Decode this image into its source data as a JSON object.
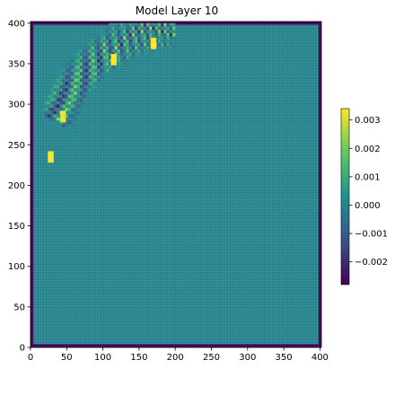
{
  "chart_data": {
    "type": "heatmap",
    "title": "Model Layer 10",
    "xlabel": "",
    "ylabel": "",
    "xlim": [
      0,
      402
    ],
    "ylim": [
      0,
      402
    ],
    "x_ticks": [
      0,
      50,
      100,
      150,
      200,
      250,
      300,
      350,
      400
    ],
    "y_ticks": [
      0,
      50,
      100,
      150,
      200,
      250,
      300,
      350,
      400
    ],
    "colormap": "viridis",
    "colorbar": {
      "range": [
        -0.0028,
        0.0034
      ],
      "ticks": [
        0.003,
        0.002,
        0.001,
        0.0,
        -0.001,
        -0.002
      ],
      "tick_labels": [
        "0.003",
        "0.002",
        "0.001",
        "0.000",
        "−0.001",
        "−0.002"
      ],
      "position": "right"
    },
    "background_value": 0.0,
    "border_value": -0.0028,
    "features": [
      {
        "kind": "wave-band",
        "x_range": [
          20,
          200
        ],
        "y_range": [
          220,
          400
        ],
        "peak_value": 0.0034,
        "trough_value": -0.0028
      },
      {
        "kind": "hot-spot",
        "x": 28,
        "y": 235,
        "value": 0.0034
      },
      {
        "kind": "hot-spot",
        "x": 115,
        "y": 355,
        "value": 0.0034
      },
      {
        "kind": "hot-spot",
        "x": 170,
        "y": 375,
        "value": 0.0034
      },
      {
        "kind": "hot-spot",
        "x": 45,
        "y": 285,
        "value": 0.0032
      }
    ],
    "grid": false
  }
}
